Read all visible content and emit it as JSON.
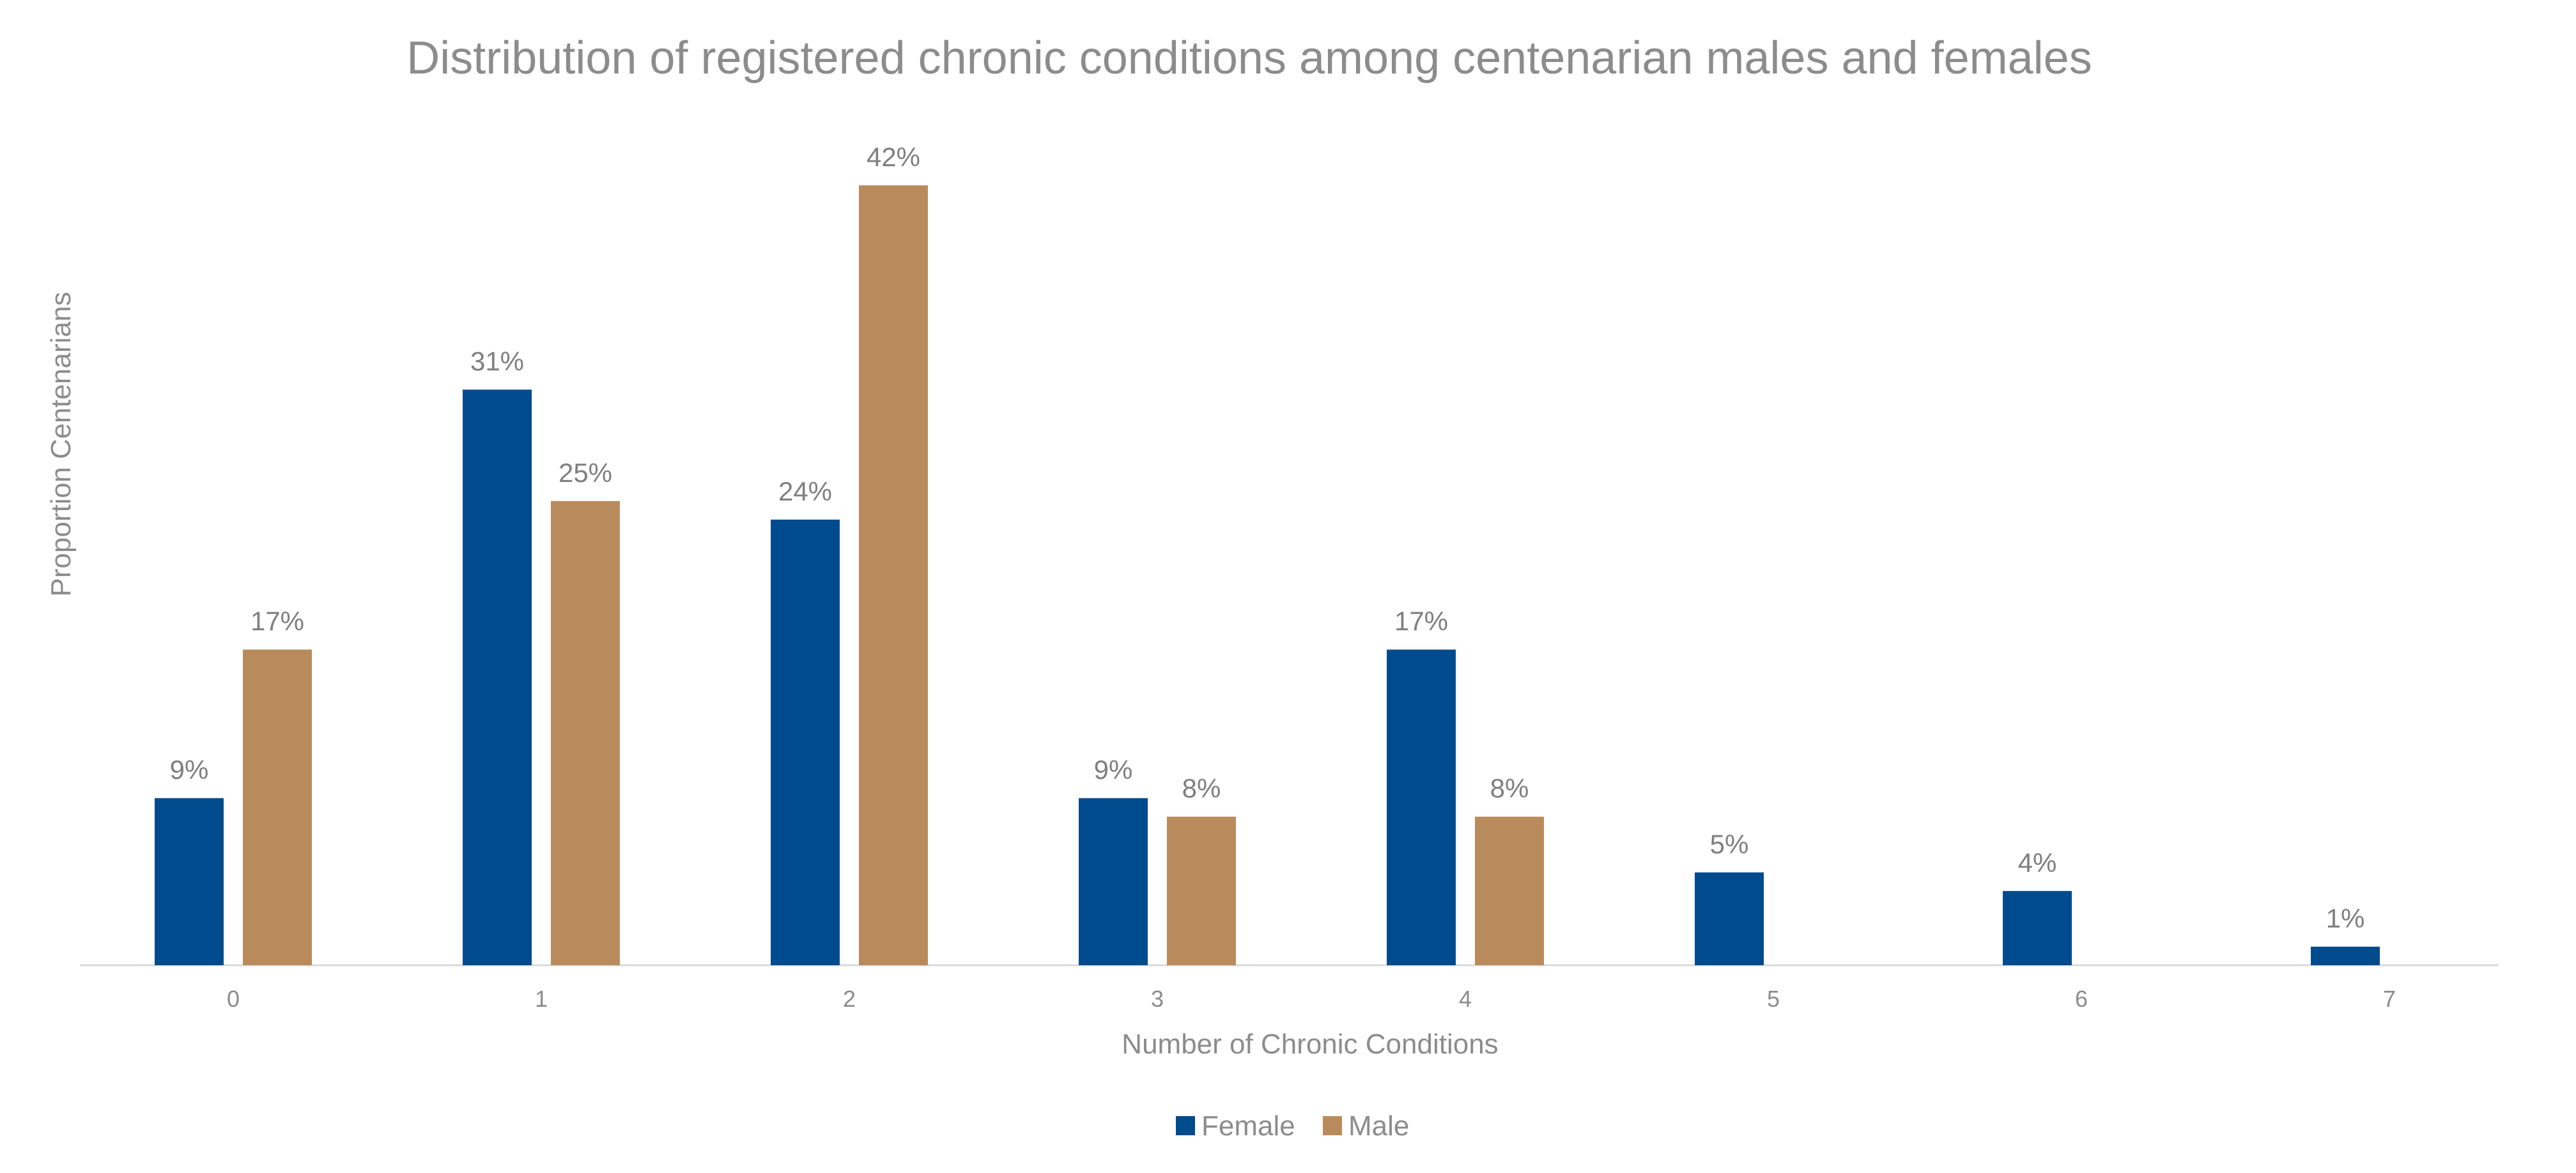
{
  "chart_data": {
    "type": "bar",
    "title": "Distribution of registered chronic conditions among centenarian males and females",
    "xlabel": "Number of Chronic Conditions",
    "ylabel": "Proportion Centenarians",
    "categories": [
      "0",
      "1",
      "2",
      "3",
      "4",
      "5",
      "6",
      "7"
    ],
    "series": [
      {
        "name": "Female",
        "color": "#004b8d",
        "values": [
          9,
          31,
          24,
          9,
          17,
          5,
          4,
          1
        ],
        "labels": [
          "9%",
          "31%",
          "24%",
          "9%",
          "17%",
          "5%",
          "4%",
          "1%"
        ]
      },
      {
        "name": "Male",
        "color": "#b98b5c",
        "values": [
          17,
          25,
          42,
          8,
          8,
          null,
          null,
          null
        ],
        "labels": [
          "17%",
          "25%",
          "42%",
          "8%",
          "8%",
          null,
          null,
          null
        ]
      }
    ],
    "ylim": [
      0,
      42
    ],
    "grid": false,
    "legend": "bottom-center",
    "data_labels": true
  }
}
